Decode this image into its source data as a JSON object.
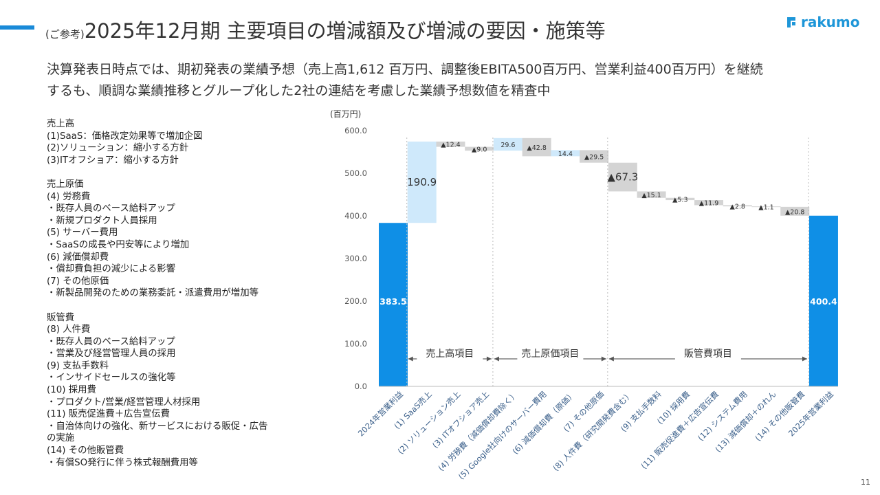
{
  "header": {
    "prefix": "(ご参考)",
    "title": "2025年12月期 主要項目の増減額及び増減の要因・施策等",
    "logo_text": "rakumo"
  },
  "subtitle": {
    "line1": "決算発表日時点では、期初発表の業績予想（売上高1,612 百万円、調整後EBITA500百万円、営業利益400百万円）を継続",
    "line2": "するも、順調な業績推移とグループ化した2社の連結を考慮した業績予想数値を精査中"
  },
  "notes": [
    "売上高",
    "(1)SaaS：価格改定効果等で増加企図",
    "(2)ソリューション：縮小する方針",
    "(3)ITオフショア：縮小する方針",
    "",
    "売上原価",
    "(4) 労務費",
    "・既存人員のベース給料アップ",
    "・新規プロダクト人員採用",
    "(5) サーバー費用",
    "・SaaSの成長や円安等により増加",
    "(6) 減価償却費",
    "・償却費負担の減少による影響",
    "(7) その他原価",
    "・新製品開発のための業務委託・派遣費用が増加等",
    "",
    "販管費",
    "(8) 人件費",
    "・既存人員のベース給料アップ",
    "・営業及び経営管理人員の採用",
    "(9) 支払手数料",
    "・インサイドセールスの強化等",
    "(10) 採用費",
    "・プロダクト/営業/経営管理人材採用",
    "(11) 販売促進費＋広告宣伝費",
    "・自治体向けの強化、新サービスにおける販促・広告",
    "の実施",
    "(14) その他販管費",
    "・有償SO発行に伴う株式報酬費用等"
  ],
  "page_number": "11",
  "colors": {
    "total": "#0f8fe6",
    "increase": "#cfe9fb",
    "decrease": "#d4d4d4",
    "accent": "#1a8ad8"
  },
  "chart_data": {
    "type": "waterfall",
    "unit_label": "(百万円)",
    "ylim": [
      0,
      600
    ],
    "yticks": [
      "0.0",
      "100.0",
      "200.0",
      "300.0",
      "400.0",
      "500.0",
      "600.0"
    ],
    "categories": [
      "2024年営業利益",
      "(1) SaaS売上",
      "(2) ソリューション売上",
      "(3) ITオフショア売上",
      "(4) 労務費（減価償却費除く）",
      "(5) Google社向けのサーバー費用",
      "(6) 減価償却費（原価）",
      "(7) その他原価",
      "(8) 人件費（研究開発費含む）",
      "(9) 支払手数料",
      "(10) 採用費",
      "(11) 販売促進費＋広告宣伝費",
      "(12) システム費用",
      "(13) 減価償却＋のれん",
      "(14) その他販管費",
      "2025年営業利益"
    ],
    "values": [
      383.5,
      190.9,
      -12.4,
      -9.0,
      29.6,
      -42.8,
      14.4,
      -29.5,
      -67.3,
      -15.1,
      -5.3,
      -11.9,
      -2.8,
      -1.1,
      -20.8,
      400.4
    ],
    "kinds": [
      "total",
      "inc",
      "dec",
      "dec",
      "inc",
      "dec",
      "inc",
      "dec",
      "dec",
      "dec",
      "dec",
      "dec",
      "dec",
      "dec",
      "dec",
      "total"
    ],
    "labels": [
      "383.5",
      "190.9",
      "▲12.4",
      "▲9.0",
      "29.6",
      "▲42.8",
      "14.4",
      "▲29.5",
      "▲67.3",
      "▲15.1",
      "▲5.3",
      "▲11.9",
      "▲2.8",
      "▲1.1",
      "▲20.8",
      "400.4"
    ],
    "groups": [
      {
        "label": "売上高項目",
        "from": 1,
        "to": 3
      },
      {
        "label": "売上原価項目",
        "from": 4,
        "to": 7
      },
      {
        "label": "販管費項目",
        "from": 8,
        "to": 14
      }
    ]
  }
}
